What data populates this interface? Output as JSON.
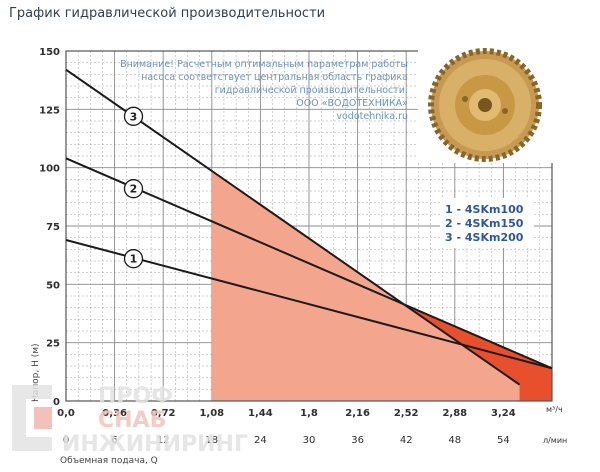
{
  "page": {
    "title": "График гидравлической производительности"
  },
  "chart_data": {
    "type": "line",
    "title": "",
    "ylabel": "Напор, Н (м)",
    "xlabel": "Объемная подача, Q",
    "x_unit_top": "м³/ч",
    "x_unit_bottom": "л/мин",
    "xlim": [
      0,
      3.6
    ],
    "ylim": [
      0,
      150
    ],
    "x_ticks_top": [
      "0,0",
      "0,36",
      "0,72",
      "1,08",
      "1,44",
      "1,8",
      "2,16",
      "2,52",
      "2,88",
      "3,24"
    ],
    "x_ticks_bottom": [
      "0",
      "6",
      "12",
      "18",
      "24",
      "30",
      "36",
      "42",
      "48",
      "54"
    ],
    "y_ticks": [
      "0",
      "25",
      "50",
      "75",
      "100",
      "125",
      "150"
    ],
    "grid": true,
    "series": [
      {
        "name": "1 - 4SKm100",
        "label": "1",
        "x": [
          0.0,
          3.6
        ],
        "y": [
          69,
          14
        ],
        "label_at": [
          0.5,
          61
        ]
      },
      {
        "name": "2 - 4SKm150",
        "label": "2",
        "x": [
          0.0,
          3.6
        ],
        "y": [
          104,
          14
        ],
        "label_at": [
          0.5,
          91
        ]
      },
      {
        "name": "3 - 4SKm200",
        "label": "3",
        "x": [
          0.0,
          3.36
        ],
        "y": [
          142,
          7
        ],
        "label_at": [
          0.5,
          122
        ]
      }
    ],
    "operating_range_q": [
      1.08,
      3.6
    ],
    "legend_position": "right",
    "note_lines": [
      "Внимание! Расчетным оптимальным параметрам работы",
      "насоса соответствует центральная область графика",
      "гидравлической производительности.",
      "ООО «ВОДОТЕХНИКА»",
      "vodotehnika.ru"
    ],
    "colors": {
      "fill_light": "#f4a58d",
      "fill_dark": "#e84f2c",
      "grid": "#a5a5a5",
      "curve": "#1b1b1b",
      "legend": "#2e56a3",
      "note": "#6b93c4"
    }
  },
  "watermark": {
    "line1": "ПРОФ",
    "line2": "СНАБ",
    "line3": "ИНЖИНИРИНГ"
  }
}
